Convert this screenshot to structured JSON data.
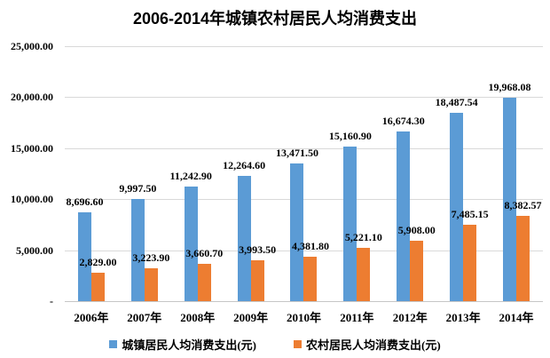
{
  "title": "2006-2014年城镇农村居民人均消费支出",
  "chart_data": {
    "type": "bar",
    "title": "2006-2014年城镇农村居民人均消费支出",
    "categories": [
      "2006年",
      "2007年",
      "2008年",
      "2009年",
      "2010年",
      "2011年",
      "2012年",
      "2013年",
      "2014年"
    ],
    "series": [
      {
        "name": "城镇居民人均消费支出(元)",
        "color": "#5b9bd5",
        "values": [
          8696.6,
          9997.5,
          11242.9,
          12264.6,
          13471.5,
          15160.9,
          16674.3,
          18487.54,
          19968.08
        ],
        "labels": [
          "8,696.60",
          "9,997.50",
          "11,242.90",
          "12,264.60",
          "13,471.50",
          "15,160.90",
          "16,674.30",
          "18,487.54",
          "19,968.08"
        ]
      },
      {
        "name": "农村居民人均消费支出(元)",
        "color": "#ed7d31",
        "values": [
          2829.0,
          3223.9,
          3660.7,
          3993.5,
          4381.8,
          5221.1,
          5908.0,
          7485.15,
          8382.57
        ],
        "labels": [
          "2,829.00",
          "3,223.90",
          "3,660.70",
          "3,993.50",
          "4,381.80",
          "5,221.10",
          "5,908.00",
          "7,485.15",
          "8,382.57"
        ]
      }
    ],
    "ylim": [
      0,
      25000
    ],
    "y_ticks": [
      {
        "value": 0,
        "label": "-"
      },
      {
        "value": 5000,
        "label": "5,000.00"
      },
      {
        "value": 10000,
        "label": "10,000.00"
      },
      {
        "value": 15000,
        "label": "15,000.00"
      },
      {
        "value": 20000,
        "label": "20,000.00"
      },
      {
        "value": 25000,
        "label": "25,000.00"
      }
    ],
    "grid": "horizontal",
    "legend_position": "bottom",
    "gridline_color": "#d9d9d9"
  }
}
